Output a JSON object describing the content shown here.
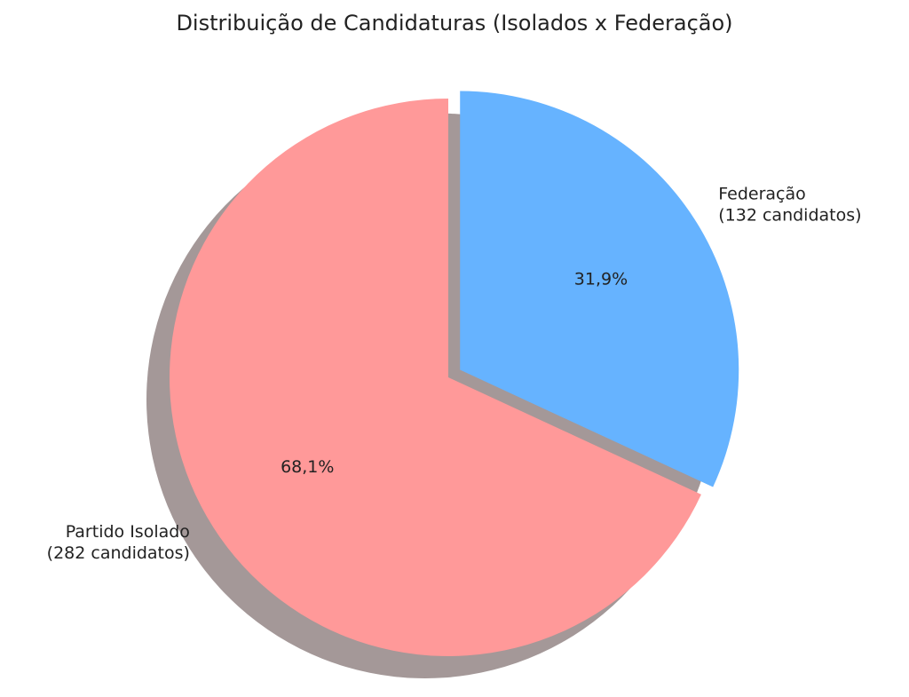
{
  "chart_data": {
    "type": "pie",
    "title": "Distribuição de Candidaturas (Isolados x Federação)",
    "categories": [
      "Partido Isolado\n(282 candidatos)",
      "Federação\n(132 candidatos)"
    ],
    "values": [
      68.1,
      31.9
    ],
    "value_labels": [
      "68,1%",
      "31,9%"
    ],
    "colors": [
      "#ff9999",
      "#66b3ff"
    ],
    "explode": [
      0,
      0.05
    ],
    "startangle": 90,
    "shadow": true
  }
}
